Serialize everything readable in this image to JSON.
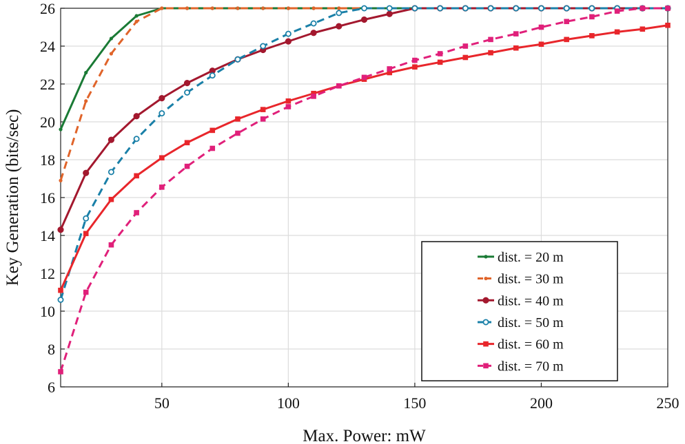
{
  "chart_data": {
    "type": "line",
    "title": "",
    "xlabel": "Max. Power: mW",
    "ylabel": "Key Generation (bits/sec)",
    "xlim": [
      10,
      250
    ],
    "ylim": [
      6,
      26
    ],
    "xticks": [
      50,
      100,
      150,
      200,
      250
    ],
    "yticks": [
      6,
      8,
      10,
      12,
      14,
      16,
      18,
      20,
      22,
      24,
      26
    ],
    "grid": true,
    "legend_position": "bottom-right",
    "x": [
      10,
      20,
      30,
      40,
      50,
      60,
      70,
      80,
      90,
      100,
      110,
      120,
      130,
      140,
      150,
      160,
      170,
      180,
      190,
      200,
      210,
      220,
      230,
      240,
      250
    ],
    "series": [
      {
        "name": "dist. = 20 m",
        "color": "#1a7a35",
        "dash": "solid",
        "marker": "dot",
        "values": [
          19.6,
          22.6,
          24.4,
          25.6,
          26,
          26,
          26,
          26,
          26,
          26,
          26,
          26,
          26,
          26,
          26,
          26,
          26,
          26,
          26,
          26,
          26,
          26,
          26,
          26,
          26
        ]
      },
      {
        "name": "dist. = 30 m",
        "color": "#e0642a",
        "dash": "dashed",
        "marker": "dot",
        "values": [
          16.9,
          21.1,
          23.6,
          25.3,
          26,
          26,
          26,
          26,
          26,
          26,
          26,
          26,
          26,
          26,
          26,
          26,
          26,
          26,
          26,
          26,
          26,
          26,
          26,
          26,
          26
        ]
      },
      {
        "name": "dist. = 40 m",
        "color": "#a3182e",
        "dash": "solid",
        "marker": "circle-filled",
        "values": [
          14.3,
          17.3,
          19.05,
          20.3,
          21.25,
          22.05,
          22.7,
          23.3,
          23.8,
          24.25,
          24.7,
          25.05,
          25.4,
          25.7,
          26,
          26,
          26,
          26,
          26,
          26,
          26,
          26,
          26,
          26,
          26
        ]
      },
      {
        "name": "dist. = 50 m",
        "color": "#1a80a8",
        "dash": "dashed",
        "marker": "circle-open",
        "values": [
          10.6,
          14.9,
          17.35,
          19.1,
          20.45,
          21.55,
          22.45,
          23.3,
          24.0,
          24.65,
          25.2,
          25.75,
          26,
          26,
          26,
          26,
          26,
          26,
          26,
          26,
          26,
          26,
          26,
          26,
          26
        ]
      },
      {
        "name": "dist. = 60 m",
        "color": "#e8262b",
        "dash": "solid",
        "marker": "square",
        "values": [
          11.1,
          14.1,
          15.9,
          17.15,
          18.1,
          18.9,
          19.55,
          20.15,
          20.65,
          21.1,
          21.5,
          21.9,
          22.25,
          22.6,
          22.9,
          23.15,
          23.4,
          23.65,
          23.9,
          24.1,
          24.35,
          24.55,
          24.75,
          24.9,
          25.1
        ]
      },
      {
        "name": "dist. = 70 m",
        "color": "#e0207a",
        "dash": "dashed",
        "marker": "square",
        "values": [
          6.8,
          11.0,
          13.5,
          15.2,
          16.55,
          17.65,
          18.6,
          19.4,
          20.15,
          20.8,
          21.35,
          21.9,
          22.35,
          22.8,
          23.25,
          23.6,
          24.0,
          24.35,
          24.65,
          25.0,
          25.3,
          25.55,
          25.85,
          26,
          26
        ]
      }
    ]
  }
}
